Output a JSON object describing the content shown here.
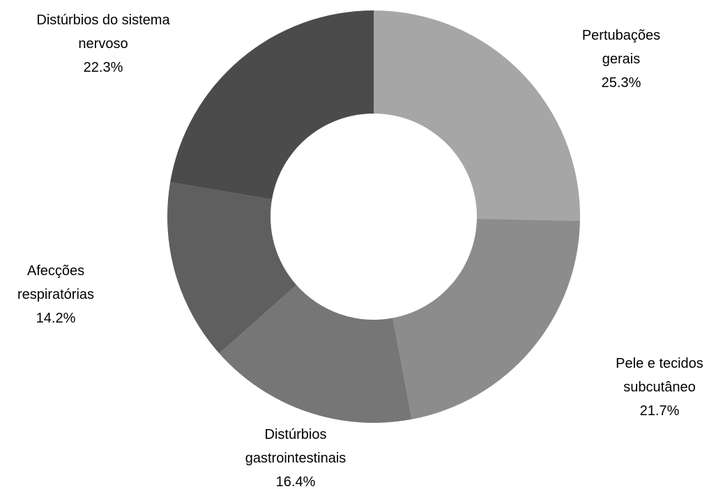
{
  "chart_data": {
    "type": "pie",
    "donut": true,
    "unit": "%",
    "categories": [
      "Pertubações gerais",
      "Pele e tecidos subcutâneo",
      "Distúrbios gastrointestinais",
      "Afecções respiratórias",
      "Distúrbios do sistema nervoso"
    ],
    "values": [
      25.3,
      21.7,
      16.4,
      14.2,
      22.3
    ],
    "slices": [
      {
        "label_lines": [
          "Pertubações",
          "gerais"
        ],
        "percent": "25.3%",
        "color": "#a6a6a6"
      },
      {
        "label_lines": [
          "Pele e tecidos",
          "subcutâneo"
        ],
        "percent": "21.7%",
        "color": "#8c8c8c"
      },
      {
        "label_lines": [
          "Distúrbios",
          "gastrointestinais"
        ],
        "percent": "16.4%",
        "color": "#767676"
      },
      {
        "label_lines": [
          "Afecções",
          "respiratórias"
        ],
        "percent": "14.2%",
        "color": "#5f5f5f"
      },
      {
        "label_lines": [
          "Distúrbios do sistema",
          "nervoso"
        ],
        "percent": "22.3%",
        "color": "#4b4b4b"
      }
    ],
    "start_angle": "12 o'clock",
    "direction": "clockwise",
    "legend": "none"
  }
}
